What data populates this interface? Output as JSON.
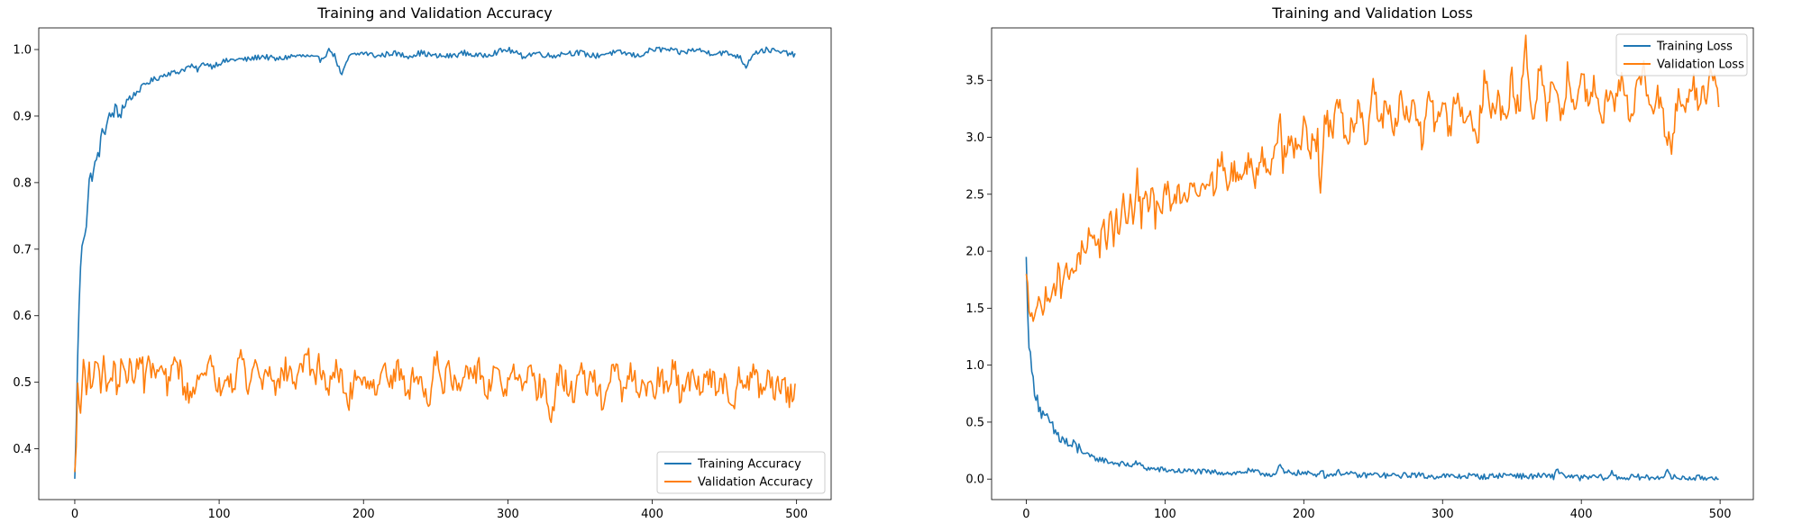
{
  "chart_data": [
    {
      "type": "line",
      "title": "Training and Validation Accuracy",
      "xlabel": "",
      "ylabel": "",
      "xlim": [
        -24.95,
        523.95
      ],
      "ylim": [
        0.3237,
        1.0325
      ],
      "xticks": [
        0,
        100,
        200,
        300,
        400,
        500
      ],
      "yticks": [
        0.4,
        0.5,
        0.6,
        0.7,
        0.8,
        0.9,
        1.0
      ],
      "ytick_labels": [
        "0.4",
        "0.5",
        "0.6",
        "0.7",
        "0.8",
        "0.9",
        "1.0"
      ],
      "grid": false,
      "legend": "lower-right",
      "x_range": [
        0,
        499
      ],
      "series": [
        {
          "name": "Training Accuracy",
          "color": "#1f77b4",
          "x": [
            0,
            3,
            5,
            8,
            10,
            13,
            15,
            18,
            20,
            23,
            25,
            28,
            30,
            35,
            40,
            45,
            50,
            55,
            60,
            65,
            70,
            75,
            80,
            85,
            90,
            95,
            100,
            110,
            120,
            130,
            140,
            150,
            160,
            170,
            177,
            180,
            185,
            190,
            200,
            210,
            220,
            230,
            240,
            250,
            260,
            270,
            280,
            290,
            300,
            310,
            320,
            330,
            340,
            350,
            360,
            370,
            380,
            390,
            400,
            410,
            420,
            430,
            440,
            450,
            460,
            465,
            470,
            480,
            490,
            495,
            499
          ],
          "y": [
            0.355,
            0.62,
            0.71,
            0.74,
            0.8,
            0.82,
            0.83,
            0.86,
            0.88,
            0.89,
            0.9,
            0.91,
            0.9,
            0.92,
            0.93,
            0.94,
            0.95,
            0.955,
            0.96,
            0.965,
            0.965,
            0.97,
            0.975,
            0.97,
            0.98,
            0.975,
            0.98,
            0.985,
            0.985,
            0.99,
            0.985,
            0.99,
            0.99,
            0.985,
            1.0,
            0.99,
            0.96,
            0.99,
            0.995,
            0.99,
            0.995,
            0.99,
            0.995,
            0.99,
            0.99,
            0.995,
            0.99,
            0.995,
            1.0,
            0.99,
            0.995,
            0.99,
            0.995,
            0.995,
            0.99,
            0.995,
            0.995,
            0.99,
            1.0,
            1.0,
            0.995,
            1.0,
            0.995,
            0.995,
            0.99,
            0.975,
            0.995,
            1.0,
            0.995,
            0.995,
            0.99
          ]
        },
        {
          "name": "Validation Accuracy",
          "color": "#ff7f0e",
          "x": [
            0,
            2,
            4,
            6,
            8,
            10,
            13,
            15,
            18,
            20,
            23,
            25,
            28,
            30,
            33,
            35,
            38,
            40,
            43,
            45,
            48,
            50,
            55,
            60,
            65,
            70,
            75,
            80,
            85,
            90,
            95,
            100,
            105,
            110,
            115,
            120,
            125,
            130,
            135,
            140,
            145,
            150,
            155,
            160,
            165,
            170,
            175,
            180,
            185,
            190,
            195,
            200,
            205,
            210,
            215,
            220,
            225,
            230,
            235,
            240,
            245,
            250,
            255,
            260,
            265,
            270,
            275,
            280,
            285,
            290,
            295,
            300,
            305,
            310,
            315,
            320,
            325,
            330,
            335,
            340,
            345,
            350,
            355,
            360,
            365,
            370,
            375,
            380,
            385,
            390,
            395,
            400,
            405,
            410,
            415,
            420,
            425,
            430,
            435,
            440,
            445,
            450,
            455,
            460,
            465,
            470,
            475,
            480,
            485,
            490,
            495,
            499
          ],
          "y": [
            0.365,
            0.48,
            0.455,
            0.53,
            0.5,
            0.52,
            0.49,
            0.545,
            0.5,
            0.53,
            0.48,
            0.52,
            0.51,
            0.49,
            0.53,
            0.5,
            0.535,
            0.49,
            0.52,
            0.555,
            0.5,
            0.53,
            0.51,
            0.52,
            0.49,
            0.54,
            0.5,
            0.47,
            0.52,
            0.5,
            0.53,
            0.49,
            0.52,
            0.5,
            0.545,
            0.49,
            0.53,
            0.5,
            0.525,
            0.49,
            0.52,
            0.51,
            0.5,
            0.555,
            0.5,
            0.53,
            0.49,
            0.52,
            0.5,
            0.47,
            0.52,
            0.5,
            0.51,
            0.48,
            0.53,
            0.5,
            0.52,
            0.48,
            0.51,
            0.5,
            0.47,
            0.545,
            0.5,
            0.52,
            0.48,
            0.51,
            0.5,
            0.53,
            0.48,
            0.51,
            0.5,
            0.49,
            0.52,
            0.48,
            0.51,
            0.49,
            0.5,
            0.44,
            0.51,
            0.5,
            0.48,
            0.52,
            0.49,
            0.51,
            0.47,
            0.5,
            0.52,
            0.48,
            0.51,
            0.49,
            0.5,
            0.48,
            0.51,
            0.49,
            0.52,
            0.48,
            0.5,
            0.51,
            0.49,
            0.52,
            0.48,
            0.5,
            0.45,
            0.51,
            0.49,
            0.53,
            0.48,
            0.52,
            0.49,
            0.5,
            0.47,
            0.5
          ]
        }
      ]
    },
    {
      "type": "line",
      "title": "Training and Validation Loss",
      "xlabel": "",
      "ylabel": "",
      "xlim": [
        -24.95,
        523.95
      ],
      "ylim": [
        -0.18,
        3.96
      ],
      "xticks": [
        0,
        100,
        200,
        300,
        400,
        500
      ],
      "yticks": [
        0.0,
        0.5,
        1.0,
        1.5,
        2.0,
        2.5,
        3.0,
        3.5
      ],
      "ytick_labels": [
        "0.0",
        "0.5",
        "1.0",
        "1.5",
        "2.0",
        "2.5",
        "3.0",
        "3.5"
      ],
      "grid": false,
      "legend": "upper-right",
      "x_range": [
        0,
        499
      ],
      "series": [
        {
          "name": "Training Loss",
          "color": "#1f77b4",
          "x": [
            0,
            1,
            2,
            3,
            4,
            5,
            6,
            8,
            10,
            12,
            14,
            16,
            18,
            20,
            23,
            25,
            28,
            30,
            35,
            40,
            45,
            50,
            55,
            60,
            65,
            70,
            75,
            80,
            85,
            90,
            100,
            110,
            120,
            130,
            140,
            150,
            160,
            170,
            180,
            183,
            186,
            190,
            200,
            210,
            212,
            215,
            220,
            225,
            230,
            240,
            250,
            260,
            270,
            280,
            290,
            300,
            310,
            320,
            330,
            340,
            350,
            360,
            370,
            380,
            382,
            390,
            400,
            410,
            420,
            422,
            425,
            430,
            440,
            450,
            460,
            462,
            465,
            470,
            480,
            490,
            499
          ],
          "y": [
            1.95,
            1.55,
            1.2,
            1.05,
            0.95,
            0.85,
            0.8,
            0.72,
            0.6,
            0.55,
            0.5,
            0.53,
            0.45,
            0.42,
            0.38,
            0.35,
            0.33,
            0.3,
            0.28,
            0.25,
            0.2,
            0.18,
            0.17,
            0.15,
            0.14,
            0.13,
            0.12,
            0.14,
            0.1,
            0.09,
            0.08,
            0.07,
            0.07,
            0.06,
            0.06,
            0.05,
            0.07,
            0.05,
            0.04,
            0.12,
            0.05,
            0.06,
            0.05,
            0.04,
            0.09,
            0.03,
            0.04,
            0.06,
            0.05,
            0.03,
            0.04,
            0.03,
            0.03,
            0.04,
            0.02,
            0.03,
            0.02,
            0.03,
            0.02,
            0.03,
            0.04,
            0.02,
            0.03,
            0.02,
            0.08,
            0.02,
            0.01,
            0.02,
            0.01,
            0.06,
            0.02,
            0.01,
            0.02,
            0.01,
            0.03,
            0.06,
            0.02,
            0.01,
            0.01,
            0.01,
            0.02
          ]
        },
        {
          "name": "Validation Loss",
          "color": "#ff7f0e",
          "x": [
            0,
            2,
            4,
            6,
            8,
            10,
            13,
            15,
            18,
            20,
            23,
            25,
            28,
            30,
            33,
            35,
            38,
            40,
            43,
            45,
            48,
            50,
            53,
            55,
            58,
            60,
            63,
            65,
            68,
            70,
            73,
            75,
            78,
            80,
            83,
            85,
            88,
            90,
            93,
            95,
            98,
            100,
            105,
            110,
            115,
            120,
            125,
            130,
            135,
            140,
            145,
            150,
            155,
            160,
            165,
            170,
            175,
            180,
            183,
            185,
            190,
            195,
            200,
            205,
            210,
            212,
            215,
            220,
            225,
            230,
            235,
            240,
            245,
            250,
            255,
            260,
            265,
            270,
            275,
            280,
            285,
            290,
            295,
            300,
            305,
            310,
            315,
            320,
            325,
            330,
            335,
            340,
            345,
            350,
            355,
            360,
            365,
            370,
            375,
            380,
            385,
            390,
            395,
            400,
            405,
            410,
            415,
            420,
            425,
            430,
            435,
            440,
            445,
            450,
            455,
            460,
            465,
            470,
            475,
            480,
            485,
            490,
            495,
            499
          ],
          "y": [
            1.8,
            1.5,
            1.55,
            1.45,
            1.55,
            1.5,
            1.55,
            1.6,
            1.7,
            1.65,
            1.8,
            1.7,
            1.85,
            1.75,
            1.9,
            1.85,
            1.95,
            2.0,
            1.9,
            2.1,
            2.0,
            2.15,
            2.05,
            2.2,
            2.1,
            2.35,
            2.15,
            2.3,
            2.2,
            2.45,
            2.25,
            2.4,
            2.3,
            2.65,
            2.3,
            2.45,
            2.35,
            2.55,
            2.3,
            2.5,
            2.4,
            2.6,
            2.35,
            2.55,
            2.45,
            2.65,
            2.5,
            2.7,
            2.55,
            2.85,
            2.55,
            2.75,
            2.6,
            2.8,
            2.65,
            2.9,
            2.7,
            2.85,
            3.3,
            2.8,
            3.0,
            2.85,
            3.1,
            2.9,
            3.0,
            2.5,
            3.2,
            3.0,
            3.3,
            3.0,
            3.1,
            3.3,
            2.95,
            3.5,
            3.1,
            3.3,
            3.0,
            3.4,
            3.1,
            3.3,
            2.95,
            3.4,
            3.1,
            3.35,
            3.0,
            3.4,
            3.1,
            3.3,
            2.95,
            3.5,
            3.2,
            3.35,
            3.1,
            3.5,
            3.2,
            3.8,
            3.1,
            3.6,
            3.2,
            3.5,
            3.1,
            3.55,
            3.2,
            3.6,
            3.3,
            3.5,
            3.2,
            3.4,
            3.3,
            3.55,
            3.2,
            3.4,
            3.6,
            3.2,
            3.35,
            3.1,
            2.85,
            3.4,
            3.2,
            3.5,
            3.3,
            3.4,
            3.6,
            3.25
          ]
        }
      ]
    }
  ]
}
